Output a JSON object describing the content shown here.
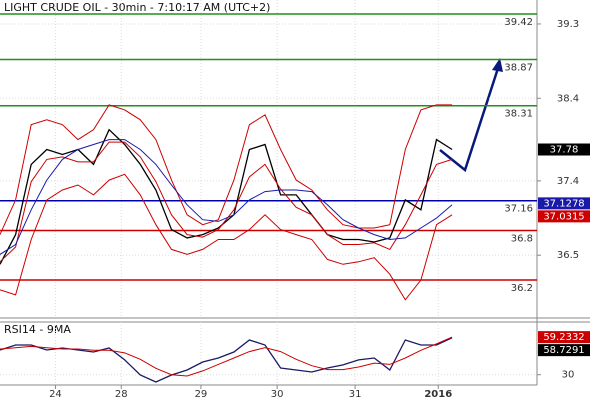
{
  "chart_data": [
    {
      "type": "line",
      "title": "LIGHT CRUDE OIL - 30min - 7:10:17 AM (UTC+2)",
      "x": [
        0,
        9,
        18,
        27,
        36,
        45,
        54,
        63,
        72,
        81,
        90,
        99,
        108,
        117,
        126,
        135,
        144,
        153,
        162,
        171,
        180,
        189,
        198,
        207,
        216,
        225,
        234,
        243,
        252,
        261
      ],
      "series": [
        {
          "color": "#000000",
          "values": [
            36.39,
            36.75,
            37.6,
            37.78,
            37.72,
            37.78,
            37.6,
            38.02,
            37.84,
            37.6,
            37.29,
            36.81,
            36.71,
            36.75,
            36.83,
            36.99,
            37.78,
            37.84,
            37.23,
            37.23,
            36.99,
            36.75,
            36.69,
            36.69,
            36.66,
            36.71,
            37.17,
            37.05,
            37.9,
            37.78
          ]
        },
        {
          "color": "#cc0000",
          "values": [
            36.75,
            37.17,
            38.08,
            38.14,
            38.08,
            37.9,
            38.02,
            38.32,
            38.26,
            38.14,
            37.9,
            37.41,
            36.99,
            36.87,
            36.93,
            37.41,
            38.08,
            38.2,
            37.78,
            37.41,
            37.29,
            37.05,
            36.87,
            36.83,
            36.83,
            36.87,
            37.78,
            38.26,
            38.32,
            38.32
          ]
        },
        {
          "color": "#cc0000",
          "values": [
            36.42,
            36.6,
            37.39,
            37.66,
            37.69,
            37.63,
            37.63,
            37.87,
            37.87,
            37.69,
            37.39,
            36.99,
            36.75,
            36.72,
            36.81,
            37.05,
            37.45,
            37.6,
            37.3,
            37.08,
            36.99,
            36.75,
            36.63,
            36.63,
            36.65,
            36.57,
            36.87,
            37.23,
            37.6,
            37.66
          ]
        },
        {
          "color": "#cc0000",
          "values": [
            36.08,
            36.02,
            36.69,
            37.17,
            37.29,
            37.35,
            37.23,
            37.41,
            37.48,
            37.23,
            36.87,
            36.57,
            36.51,
            36.57,
            36.69,
            36.69,
            36.81,
            36.99,
            36.81,
            36.75,
            36.69,
            36.45,
            36.39,
            36.42,
            36.47,
            36.27,
            35.96,
            36.2,
            36.87,
            36.99
          ]
        },
        {
          "color": "#1a1aaa",
          "values": [
            36.51,
            36.63,
            37.05,
            37.41,
            37.66,
            37.78,
            37.84,
            37.9,
            37.9,
            37.78,
            37.6,
            37.35,
            37.11,
            36.93,
            36.91,
            36.99,
            37.17,
            37.27,
            37.29,
            37.29,
            37.27,
            37.11,
            36.93,
            36.83,
            36.75,
            36.69,
            36.71,
            36.83,
            36.95,
            37.11
          ]
        }
      ],
      "levels": [
        {
          "value": 39.42,
          "color": "#1f8f1f"
        },
        {
          "value": 38.87,
          "color": "#1f8f1f"
        },
        {
          "value": 38.31,
          "color": "#1f8f1f"
        },
        {
          "value": 37.16,
          "color": "#0000aa"
        },
        {
          "value": 36.8,
          "color": "#cc0000"
        },
        {
          "value": 36.2,
          "color": "#cc0000"
        }
      ],
      "last_values": [
        {
          "value": 37.78,
          "color": "#000000"
        },
        {
          "value": 37.0315,
          "color": "#cc0000"
        },
        {
          "value": 37.1278,
          "color": "#1a1aaa"
        }
      ],
      "xlim": [
        0,
        310
      ],
      "ylim": [
        35.74,
        39.59
      ],
      "yticks": [
        39.3,
        38.4,
        37.4,
        36.5
      ],
      "grid": true
    },
    {
      "type": "line",
      "title": "RSI14 - 9MA",
      "x": [
        0,
        9,
        18,
        27,
        36,
        45,
        54,
        63,
        72,
        81,
        90,
        99,
        108,
        117,
        126,
        135,
        144,
        153,
        162,
        171,
        180,
        189,
        198,
        207,
        216,
        225,
        234,
        243,
        252,
        261
      ],
      "series": [
        {
          "color": "#1a1a66",
          "values": [
            49.2,
            53.1,
            53.1,
            49.2,
            50.8,
            49.2,
            47.7,
            50.8,
            41.5,
            29.8,
            24.3,
            29.8,
            33.7,
            39.9,
            43.0,
            47.7,
            57.0,
            53.1,
            35.2,
            33.7,
            32.1,
            35.2,
            37.6,
            41.5,
            43.0,
            33.7,
            57.0,
            53.1,
            53.1,
            58.73
          ]
        },
        {
          "color": "#cc0000",
          "values": [
            50,
            51,
            52,
            51,
            50,
            50,
            49,
            49,
            47,
            42,
            35,
            30,
            29,
            33,
            38,
            43,
            48,
            51,
            48,
            42,
            37,
            34,
            34,
            36,
            39,
            38,
            43,
            49,
            54,
            59.23
          ]
        }
      ],
      "last_values": [
        {
          "value": 59.2332,
          "color": "#cc0000"
        },
        {
          "value": 58.7291,
          "color": "#000000"
        }
      ],
      "xlim": [
        0,
        310
      ],
      "ylim": [
        22,
        71
      ],
      "yticks": [
        30
      ],
      "xticks": [
        {
          "value": 32,
          "label": "24"
        },
        {
          "value": 70,
          "label": "28"
        },
        {
          "value": 116,
          "label": "29"
        },
        {
          "value": 160,
          "label": "30"
        },
        {
          "value": 205,
          "label": "31"
        },
        {
          "value": 253,
          "label": "2016"
        }
      ],
      "grid": true
    }
  ]
}
